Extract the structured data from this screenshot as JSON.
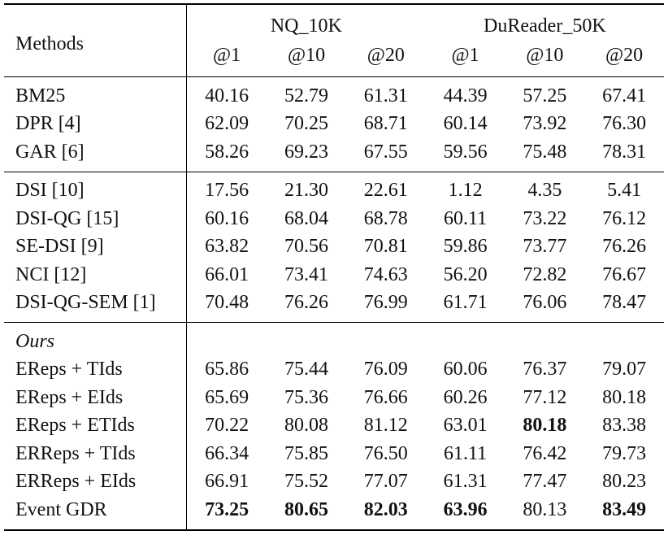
{
  "header": {
    "methods": "Methods",
    "groups": [
      "NQ_10K",
      "DuReader_50K"
    ],
    "ks": [
      "@1",
      "@10",
      "@20",
      "@1",
      "@10",
      "@20"
    ]
  },
  "sections": [
    {
      "rows": [
        {
          "method": "BM25",
          "values": [
            "40.16",
            "52.79",
            "61.31",
            "44.39",
            "57.25",
            "67.41"
          ],
          "bold": [
            false,
            false,
            false,
            false,
            false,
            false
          ]
        },
        {
          "method": "DPR [4]",
          "values": [
            "62.09",
            "70.25",
            "68.71",
            "60.14",
            "73.92",
            "76.30"
          ],
          "bold": [
            false,
            false,
            false,
            false,
            false,
            false
          ]
        },
        {
          "method": "GAR [6]",
          "values": [
            "58.26",
            "69.23",
            "67.55",
            "59.56",
            "75.48",
            "78.31"
          ],
          "bold": [
            false,
            false,
            false,
            false,
            false,
            false
          ]
        }
      ]
    },
    {
      "rows": [
        {
          "method": "DSI [10]",
          "values": [
            "17.56",
            "21.30",
            "22.61",
            "1.12",
            "4.35",
            "5.41"
          ],
          "bold": [
            false,
            false,
            false,
            false,
            false,
            false
          ]
        },
        {
          "method": "DSI-QG [15]",
          "values": [
            "60.16",
            "68.04",
            "68.78",
            "60.11",
            "73.22",
            "76.12"
          ],
          "bold": [
            false,
            false,
            false,
            false,
            false,
            false
          ]
        },
        {
          "method": "SE-DSI [9]",
          "values": [
            "63.82",
            "70.56",
            "70.81",
            "59.86",
            "73.77",
            "76.26"
          ],
          "bold": [
            false,
            false,
            false,
            false,
            false,
            false
          ]
        },
        {
          "method": "NCI [12]",
          "values": [
            "66.01",
            "73.41",
            "74.63",
            "56.20",
            "72.82",
            "76.67"
          ],
          "bold": [
            false,
            false,
            false,
            false,
            false,
            false
          ]
        },
        {
          "method": "DSI-QG-SEM [1]",
          "values": [
            "70.48",
            "76.26",
            "76.99",
            "61.71",
            "76.06",
            "78.47"
          ],
          "bold": [
            false,
            false,
            false,
            false,
            false,
            false
          ]
        }
      ]
    },
    {
      "label": "Ours",
      "rows": [
        {
          "method": "EReps + TIds",
          "values": [
            "65.86",
            "75.44",
            "76.09",
            "60.06",
            "76.37",
            "79.07"
          ],
          "bold": [
            false,
            false,
            false,
            false,
            false,
            false
          ]
        },
        {
          "method": "EReps + EIds",
          "values": [
            "65.69",
            "75.36",
            "76.66",
            "60.26",
            "77.12",
            "80.18"
          ],
          "bold": [
            false,
            false,
            false,
            false,
            false,
            false
          ]
        },
        {
          "method": "EReps + ETIds",
          "values": [
            "70.22",
            "80.08",
            "81.12",
            "63.01",
            "80.18",
            "83.38"
          ],
          "bold": [
            false,
            false,
            false,
            false,
            true,
            false
          ]
        },
        {
          "method": "ERReps + TIds",
          "values": [
            "66.34",
            "75.85",
            "76.50",
            "61.11",
            "76.42",
            "79.73"
          ],
          "bold": [
            false,
            false,
            false,
            false,
            false,
            false
          ]
        },
        {
          "method": "ERReps + EIds",
          "values": [
            "66.91",
            "75.52",
            "77.07",
            "61.31",
            "77.47",
            "80.23"
          ],
          "bold": [
            false,
            false,
            false,
            false,
            false,
            false
          ]
        },
        {
          "method": "Event GDR",
          "values": [
            "73.25",
            "80.65",
            "82.03",
            "63.96",
            "80.13",
            "83.49"
          ],
          "bold": [
            true,
            true,
            true,
            true,
            false,
            true
          ]
        }
      ]
    }
  ]
}
